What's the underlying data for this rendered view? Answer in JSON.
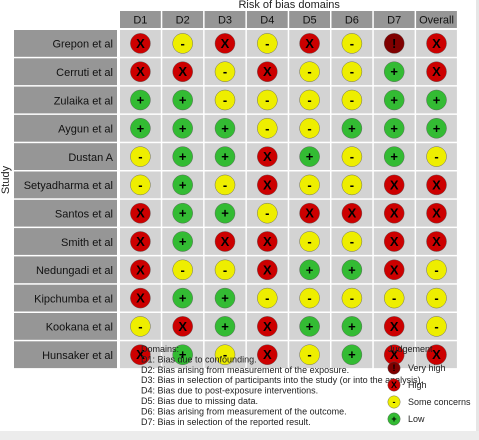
{
  "chart_data": {
    "type": "table",
    "title": "Risk of bias domains",
    "ylabel": "Study",
    "columns": [
      "D1",
      "D2",
      "D3",
      "D4",
      "D5",
      "D6",
      "D7",
      "Overall"
    ],
    "studies": [
      "Grepon et al",
      "Cerruti et al",
      "Zulaika et al",
      "Aygun et al",
      "Dustan A",
      "Setyadharma et al",
      "Santos et al",
      "Smith et al",
      "Nedungadi et al",
      "Kipchumba et al",
      "Kookana et al",
      "Hunsaker et al"
    ],
    "judgements": [
      [
        "High",
        "Some concerns",
        "High",
        "Some concerns",
        "High",
        "Some concerns",
        "Very high",
        "High"
      ],
      [
        "High",
        "High",
        "Some concerns",
        "High",
        "Some concerns",
        "Some concerns",
        "Low",
        "High"
      ],
      [
        "Low",
        "Low",
        "Some concerns",
        "Some concerns",
        "Some concerns",
        "Some concerns",
        "Low",
        "Low"
      ],
      [
        "Low",
        "Low",
        "Low",
        "Some concerns",
        "Some concerns",
        "Low",
        "Low",
        "Low"
      ],
      [
        "Some concerns",
        "Low",
        "Low",
        "High",
        "Low",
        "Some concerns",
        "Low",
        "Some concerns"
      ],
      [
        "Some concerns",
        "Low",
        "Some concerns",
        "High",
        "Some concerns",
        "Some concerns",
        "High",
        "High"
      ],
      [
        "High",
        "Low",
        "Low",
        "Some concerns",
        "High",
        "High",
        "High",
        "High"
      ],
      [
        "High",
        "Low",
        "High",
        "High",
        "Some concerns",
        "Some concerns",
        "High",
        "High"
      ],
      [
        "High",
        "Some concerns",
        "Some concerns",
        "High",
        "Low",
        "Low",
        "High",
        "Some concerns"
      ],
      [
        "High",
        "Low",
        "Low",
        "Some concerns",
        "Some concerns",
        "Some concerns",
        "Some concerns",
        "Some concerns"
      ],
      [
        "Some concerns",
        "High",
        "Low",
        "High",
        "Low",
        "Low",
        "High",
        "Some concerns"
      ],
      [
        "High",
        "Low",
        "Some concerns",
        "High",
        "Some concerns",
        "Low",
        "High",
        "High"
      ]
    ],
    "domains_title": "Domains:",
    "domains": [
      "D1: Bias due to confounding.",
      "D2: Bias arising from measurement of the exposure.",
      "D3: Bias in selection of participants into the study (or into the analysis).",
      "D4: Bias due to post-exposure interventions.",
      "D5: Bias due to missing data.",
      "D6: Bias arising from measurement of the outcome.",
      "D7: Bias in selection of the reported result."
    ],
    "legend_title": "Judgement",
    "legend": [
      {
        "label": "Very high",
        "level": "Very high"
      },
      {
        "label": "High",
        "level": "High"
      },
      {
        "label": "Some concerns",
        "level": "Some concerns"
      },
      {
        "label": "Low",
        "level": "Low"
      }
    ],
    "colors": {
      "Very high": "#7f0000",
      "High": "#cc0000",
      "Some concerns": "#eeee00",
      "Low": "#33bb33",
      "header": "#969696",
      "cell": "#d3d3d3",
      "grid": "#ffffff"
    },
    "symbols": {
      "Very high": "!",
      "High": "X",
      "Some concerns": "-",
      "Low": "+"
    }
  }
}
